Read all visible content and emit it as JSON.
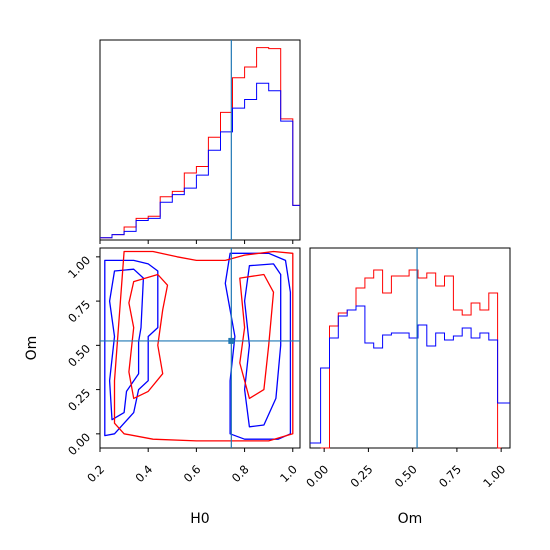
{
  "chart_data": {
    "type": "corner",
    "params": [
      "H0",
      "Om"
    ],
    "truth": {
      "H0": 0.745,
      "Om": 0.525
    },
    "colors": {
      "red": "#ff0000",
      "blue": "#0000ff",
      "truth": "#1f77b4"
    },
    "axes": {
      "H0": {
        "label": "H0",
        "lim": [
          0.2,
          1.03
        ],
        "ticks": [
          0.2,
          0.4,
          0.6,
          0.8,
          1.0
        ],
        "tick_labels": [
          "0.2",
          "0.4",
          "0.6",
          "0.8",
          "1.0"
        ]
      },
      "Om": {
        "label": "Om",
        "lim": [
          -0.08,
          1.05
        ],
        "ticks": [
          0.0,
          0.25,
          0.5,
          0.75,
          1.0
        ],
        "tick_labels": [
          "0.00",
          "0.25",
          "0.50",
          "0.75",
          "1.00"
        ]
      }
    },
    "panels": [
      {
        "id": "H0-marginal",
        "kind": "histogram",
        "param": "H0",
        "bin_edges": [
          0.2,
          0.25,
          0.3,
          0.35,
          0.4,
          0.45,
          0.5,
          0.55,
          0.6,
          0.65,
          0.7,
          0.75,
          0.8,
          0.85,
          0.9,
          0.95,
          1.0,
          1.03
        ],
        "ylim": [
          0,
          185
        ],
        "series": [
          {
            "color": "red",
            "values": [
              2,
              5,
              12,
              20,
              22,
              40,
              45,
              62,
              68,
              95,
              118,
              150,
              160,
              178,
              177,
              112,
              32
            ]
          },
          {
            "color": "blue",
            "values": [
              2,
              5,
              8,
              18,
              20,
              35,
              42,
              48,
              60,
              83,
              100,
              122,
              130,
              145,
              138,
              110,
              32
            ]
          }
        ]
      },
      {
        "id": "Om-marginal",
        "kind": "histogram",
        "param": "Om",
        "bin_edges": [
          -0.08,
          -0.02,
          0.03,
          0.08,
          0.13,
          0.18,
          0.23,
          0.28,
          0.33,
          0.38,
          0.43,
          0.48,
          0.53,
          0.58,
          0.63,
          0.68,
          0.73,
          0.78,
          0.83,
          0.88,
          0.93,
          0.98,
          1.0,
          1.05
        ],
        "ylim": [
          0,
          200
        ],
        "series": [
          {
            "color": "red",
            "values": [
              null,
              0,
              122,
              135,
              138,
              160,
              170,
              178,
              155,
              172,
              172,
              178,
              170,
              175,
              162,
              172,
              138,
              133,
              145,
              138,
              155,
              0,
              null
            ]
          },
          {
            "color": "blue",
            "values": [
              5,
              80,
              110,
              132,
              138,
              142,
              105,
              100,
              113,
              115,
              115,
              110,
              123,
              102,
              115,
              108,
              112,
              120,
              110,
              115,
              108,
              45,
              45
            ]
          }
        ]
      },
      {
        "id": "H0-Om-2d",
        "kind": "contour",
        "x": "H0",
        "y": "Om",
        "contours": [
          {
            "color": "blue",
            "level": "outer",
            "points": [
              [
                0.22,
                0.98
              ],
              [
                0.34,
                0.98
              ],
              [
                0.4,
                0.96
              ],
              [
                0.44,
                0.92
              ],
              [
                0.44,
                0.6
              ],
              [
                0.4,
                0.55
              ],
              [
                0.4,
                0.3
              ],
              [
                0.36,
                0.25
              ],
              [
                0.34,
                0.12
              ],
              [
                0.3,
                0.06
              ],
              [
                0.26,
                0.0
              ],
              [
                0.22,
                -0.01
              ],
              [
                0.22,
                0.98
              ]
            ]
          },
          {
            "color": "blue",
            "level": "outer",
            "points": [
              [
                0.74,
                1.02
              ],
              [
                0.9,
                1.02
              ],
              [
                0.97,
                0.98
              ],
              [
                0.99,
                0.8
              ],
              [
                0.99,
                0.0
              ],
              [
                0.94,
                -0.03
              ],
              [
                0.8,
                -0.03
              ],
              [
                0.74,
                0.0
              ],
              [
                0.74,
                0.3
              ],
              [
                0.76,
                0.55
              ],
              [
                0.74,
                0.7
              ],
              [
                0.72,
                0.85
              ],
              [
                0.74,
                1.02
              ]
            ]
          },
          {
            "color": "blue",
            "level": "inner",
            "points": [
              [
                0.26,
                0.92
              ],
              [
                0.34,
                0.93
              ],
              [
                0.38,
                0.88
              ],
              [
                0.37,
                0.6
              ],
              [
                0.36,
                0.52
              ],
              [
                0.36,
                0.34
              ],
              [
                0.31,
                0.24
              ],
              [
                0.3,
                0.12
              ],
              [
                0.25,
                0.08
              ],
              [
                0.24,
                0.3
              ],
              [
                0.26,
                0.55
              ],
              [
                0.24,
                0.75
              ],
              [
                0.26,
                0.92
              ]
            ]
          },
          {
            "color": "blue",
            "level": "inner",
            "points": [
              [
                0.82,
                0.95
              ],
              [
                0.92,
                0.96
              ],
              [
                0.95,
                0.9
              ],
              [
                0.95,
                0.5
              ],
              [
                0.93,
                0.2
              ],
              [
                0.88,
                0.05
              ],
              [
                0.82,
                0.04
              ],
              [
                0.8,
                0.25
              ],
              [
                0.82,
                0.5
              ],
              [
                0.8,
                0.75
              ],
              [
                0.82,
                0.95
              ]
            ]
          },
          {
            "color": "red",
            "level": "outer",
            "points": [
              [
                0.3,
                1.03
              ],
              [
                0.42,
                1.03
              ],
              [
                0.52,
                1.0
              ],
              [
                0.6,
                0.98
              ],
              [
                0.72,
                0.98
              ],
              [
                0.8,
                1.01
              ],
              [
                0.92,
                1.03
              ],
              [
                1.0,
                1.02
              ],
              [
                1.0,
                0.0
              ],
              [
                0.9,
                -0.04
              ],
              [
                0.6,
                -0.04
              ],
              [
                0.42,
                -0.03
              ],
              [
                0.3,
                0.0
              ],
              [
                0.26,
                0.06
              ],
              [
                0.26,
                0.3
              ],
              [
                0.3,
                1.03
              ]
            ]
          },
          {
            "color": "red",
            "level": "inner",
            "points": [
              [
                0.34,
                0.86
              ],
              [
                0.44,
                0.9
              ],
              [
                0.48,
                0.84
              ],
              [
                0.46,
                0.7
              ],
              [
                0.44,
                0.5
              ],
              [
                0.46,
                0.34
              ],
              [
                0.4,
                0.24
              ],
              [
                0.34,
                0.2
              ],
              [
                0.32,
                0.35
              ],
              [
                0.34,
                0.6
              ],
              [
                0.32,
                0.74
              ],
              [
                0.34,
                0.86
              ]
            ]
          },
          {
            "color": "red",
            "level": "inner",
            "points": [
              [
                0.78,
                0.88
              ],
              [
                0.88,
                0.9
              ],
              [
                0.92,
                0.8
              ],
              [
                0.9,
                0.5
              ],
              [
                0.88,
                0.25
              ],
              [
                0.82,
                0.2
              ],
              [
                0.78,
                0.4
              ],
              [
                0.8,
                0.6
              ],
              [
                0.78,
                0.88
              ]
            ]
          }
        ]
      }
    ]
  }
}
